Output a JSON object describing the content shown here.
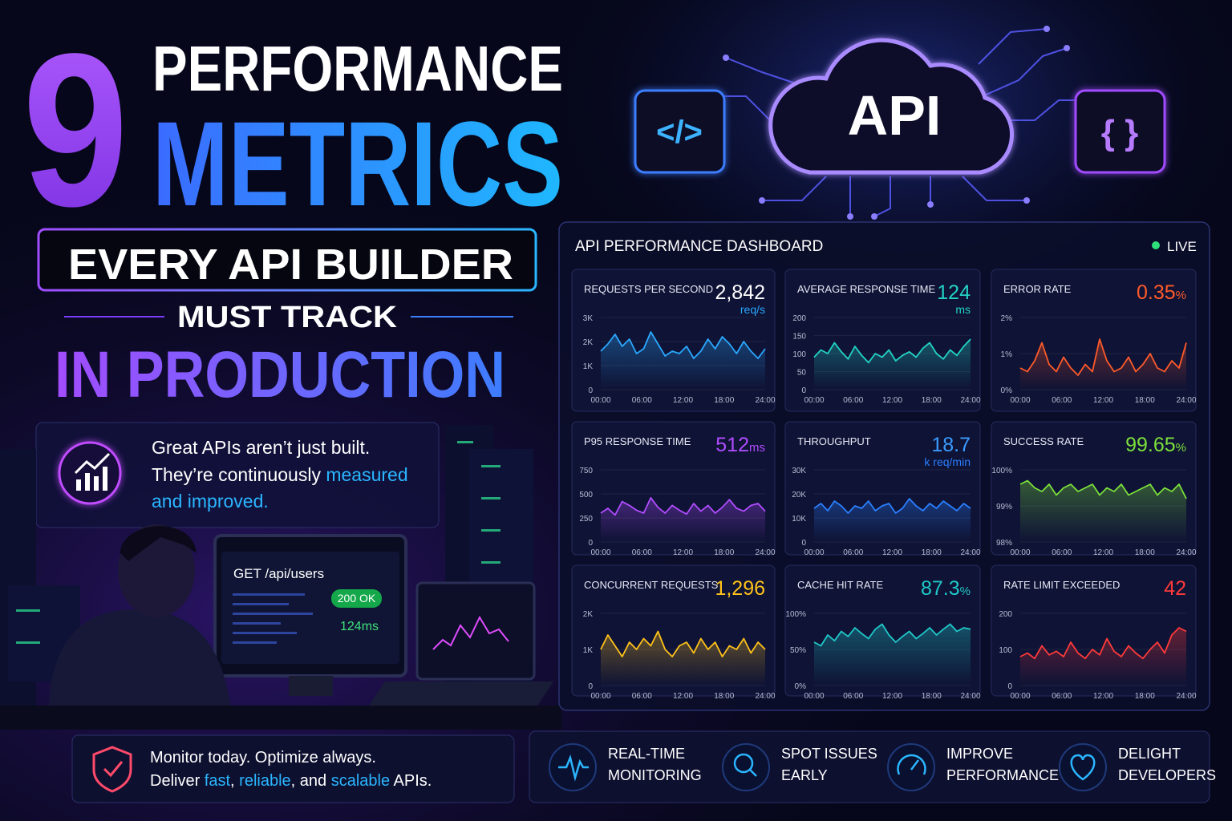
{
  "header": {
    "number": "9",
    "line1": "PERFORMANCE",
    "line2": "METRICS",
    "boxed": "EVERY API BUILDER",
    "line3": "MUST TRACK",
    "line4": "IN PRODUCTION"
  },
  "hero": {
    "cloud": "API",
    "left_box": "</>",
    "right_box": "{ }"
  },
  "quote": {
    "line1": "Great APIs aren’t just built.",
    "line2": "They’re continuously ",
    "line2_highlight": "measured",
    "line3": "and improved."
  },
  "illustration": {
    "request": "GET /api/users",
    "status": "200 OK",
    "time": "124ms"
  },
  "dashboard": {
    "title": "API PERFORMANCE DASHBOARD",
    "status": "LIVE",
    "panels": [
      {
        "type": "line",
        "title": "REQUESTS PER SECOND",
        "value": "2,842",
        "unit": "req/s",
        "unit_position": "below",
        "color": "#2aa8ff",
        "value_color": "#ffffff",
        "ylim": [
          0,
          3000
        ],
        "yticks": [
          0,
          {
            "value": 1000,
            "label": "1K"
          },
          {
            "value": 2000,
            "label": "2K"
          },
          {
            "value": 3000,
            "label": "3K"
          }
        ],
        "xticks": [
          "00:00",
          "06:00",
          "12:00",
          "18:00",
          "24:00"
        ],
        "values": [
          1600,
          1900,
          2300,
          1800,
          2100,
          1500,
          1700,
          2400,
          1900,
          1400,
          1600,
          1500,
          1800,
          1300,
          1600,
          2100,
          1700,
          2200,
          1900,
          1500,
          2000,
          1600,
          1300,
          1700
        ]
      },
      {
        "type": "line",
        "title": "AVERAGE RESPONSE TIME",
        "value": "124",
        "unit": "ms",
        "unit_position": "below",
        "color": "#22d3c5",
        "value_color": "#22d3c5",
        "ylim": [
          0,
          200
        ],
        "yticks": [
          0,
          50,
          100,
          150,
          200
        ],
        "xticks": [
          "00:00",
          "06:00",
          "12:00",
          "18:00",
          "24:00"
        ],
        "values": [
          90,
          110,
          100,
          130,
          105,
          85,
          120,
          95,
          75,
          100,
          90,
          110,
          80,
          95,
          105,
          90,
          115,
          130,
          100,
          85,
          110,
          95,
          120,
          140
        ]
      },
      {
        "type": "line",
        "title": "ERROR RATE",
        "value": "0.35",
        "unit": "%",
        "unit_position": "inline",
        "color": "#ff5a2a",
        "value_color": "#ff5a2a",
        "ylim": [
          0,
          2
        ],
        "yticks": [
          {
            "value": 0,
            "label": "0%"
          },
          {
            "value": 1,
            "label": "1%"
          },
          {
            "value": 2,
            "label": "2%"
          }
        ],
        "xticks": [
          "00:00",
          "06:00",
          "12:00",
          "18:00",
          "24:00"
        ],
        "values": [
          0.6,
          0.5,
          0.8,
          1.3,
          0.7,
          0.5,
          0.9,
          0.6,
          0.4,
          0.7,
          0.5,
          1.4,
          0.8,
          0.5,
          0.6,
          0.9,
          0.5,
          0.7,
          1.0,
          0.6,
          0.5,
          0.8,
          0.6,
          1.3
        ]
      },
      {
        "type": "line",
        "title": "P95 RESPONSE TIME",
        "value": "512",
        "unit": "ms",
        "unit_position": "inline",
        "color": "#b04cff",
        "value_color": "#b04cff",
        "ylim": [
          0,
          750
        ],
        "yticks": [
          0,
          250,
          500,
          750
        ],
        "xticks": [
          "00:00",
          "06:00",
          "12:00",
          "18:00",
          "24:00"
        ],
        "values": [
          300,
          350,
          280,
          420,
          380,
          330,
          300,
          460,
          360,
          300,
          380,
          330,
          290,
          400,
          320,
          380,
          300,
          360,
          440,
          350,
          320,
          380,
          400,
          320
        ]
      },
      {
        "type": "line",
        "title": "THROUGHPUT",
        "value": "18.7",
        "unit": "k req/min",
        "unit_position": "below",
        "color": "#2a7fff",
        "value_color": "#3a9bff",
        "ylim": [
          0,
          30000
        ],
        "yticks": [
          0,
          {
            "value": 10000,
            "label": "10K"
          },
          {
            "value": 20000,
            "label": "20K"
          },
          {
            "value": 30000,
            "label": "30K"
          }
        ],
        "xticks": [
          "00:00",
          "06:00",
          "12:00",
          "18:00",
          "24:00"
        ],
        "values": [
          14000,
          16000,
          13000,
          17000,
          15000,
          12000,
          15000,
          14000,
          17000,
          13000,
          15000,
          16000,
          12000,
          14000,
          18000,
          15000,
          13000,
          16000,
          14000,
          17000,
          15000,
          13000,
          16000,
          14000
        ]
      },
      {
        "type": "line",
        "title": "SUCCESS RATE",
        "value": "99.65",
        "unit": "%",
        "unit_position": "inline",
        "color": "#7be03a",
        "value_color": "#7be03a",
        "ylim": [
          98,
          100
        ],
        "yticks": [
          {
            "value": 98,
            "label": "98%"
          },
          {
            "value": 99,
            "label": "99%"
          },
          {
            "value": 100,
            "label": "100%"
          }
        ],
        "xticks": [
          "00:00",
          "06:00",
          "12:00",
          "18:00",
          "24:00"
        ],
        "values": [
          99.6,
          99.7,
          99.5,
          99.4,
          99.6,
          99.3,
          99.5,
          99.6,
          99.4,
          99.5,
          99.6,
          99.3,
          99.5,
          99.4,
          99.6,
          99.3,
          99.4,
          99.5,
          99.6,
          99.3,
          99.5,
          99.4,
          99.6,
          99.2
        ]
      },
      {
        "type": "line",
        "title": "CONCURRENT REQUESTS",
        "value": "1,296",
        "color": "#ffc21a",
        "value_color": "#ffc21a",
        "ylim": [
          0,
          2000
        ],
        "yticks": [
          0,
          {
            "value": 1000,
            "label": "1K"
          },
          {
            "value": 2000,
            "label": "2K"
          }
        ],
        "xticks": [
          "00:00",
          "06:00",
          "12:00",
          "18:00",
          "24:00"
        ],
        "values": [
          1000,
          1400,
          1100,
          800,
          1200,
          1000,
          1300,
          1100,
          1500,
          1000,
          800,
          1100,
          1200,
          900,
          1300,
          1000,
          1200,
          800,
          1100,
          1000,
          1300,
          900,
          1200,
          1000
        ]
      },
      {
        "type": "line",
        "title": "CACHE HIT RATE",
        "value": "87.3",
        "unit": "%",
        "unit_position": "inline",
        "color": "#1fc8c8",
        "value_color": "#1fc8c8",
        "ylim": [
          0,
          100
        ],
        "yticks": [
          {
            "value": 0,
            "label": "0%"
          },
          {
            "value": 50,
            "label": "50%"
          },
          {
            "value": 100,
            "label": "100%"
          }
        ],
        "xticks": [
          "00:00",
          "06:00",
          "12:00",
          "18:00",
          "24:00"
        ],
        "values": [
          60,
          55,
          70,
          62,
          75,
          68,
          80,
          72,
          65,
          78,
          85,
          70,
          60,
          68,
          75,
          65,
          72,
          80,
          70,
          78,
          85,
          75,
          80,
          78
        ]
      },
      {
        "type": "line",
        "title": "RATE LIMIT EXCEEDED",
        "value": "42",
        "color": "#ff3a3a",
        "value_color": "#ff3a3a",
        "ylim": [
          0,
          200
        ],
        "yticks": [
          0,
          100,
          200
        ],
        "xticks": [
          "00:00",
          "06:00",
          "12:00",
          "18:00",
          "24:00"
        ],
        "values": [
          80,
          90,
          75,
          110,
          85,
          95,
          80,
          120,
          90,
          75,
          100,
          85,
          130,
          95,
          80,
          110,
          90,
          75,
          100,
          120,
          90,
          140,
          160,
          150
        ]
      }
    ]
  },
  "footer": {
    "line1": "Monitor today. Optimize always.",
    "line2": {
      "pre": "Deliver ",
      "w1": "fast",
      "s1": ", ",
      "w2": "reliable",
      "s2": ", and ",
      "w3": "scalable",
      "post": " APIs."
    },
    "benefits": [
      [
        "REAL-TIME",
        "MONITORING"
      ],
      [
        "SPOT ISSUES",
        "EARLY"
      ],
      [
        "IMPROVE",
        "PERFORMANCE"
      ],
      [
        "DELIGHT",
        "DEVELOPERS"
      ]
    ]
  }
}
